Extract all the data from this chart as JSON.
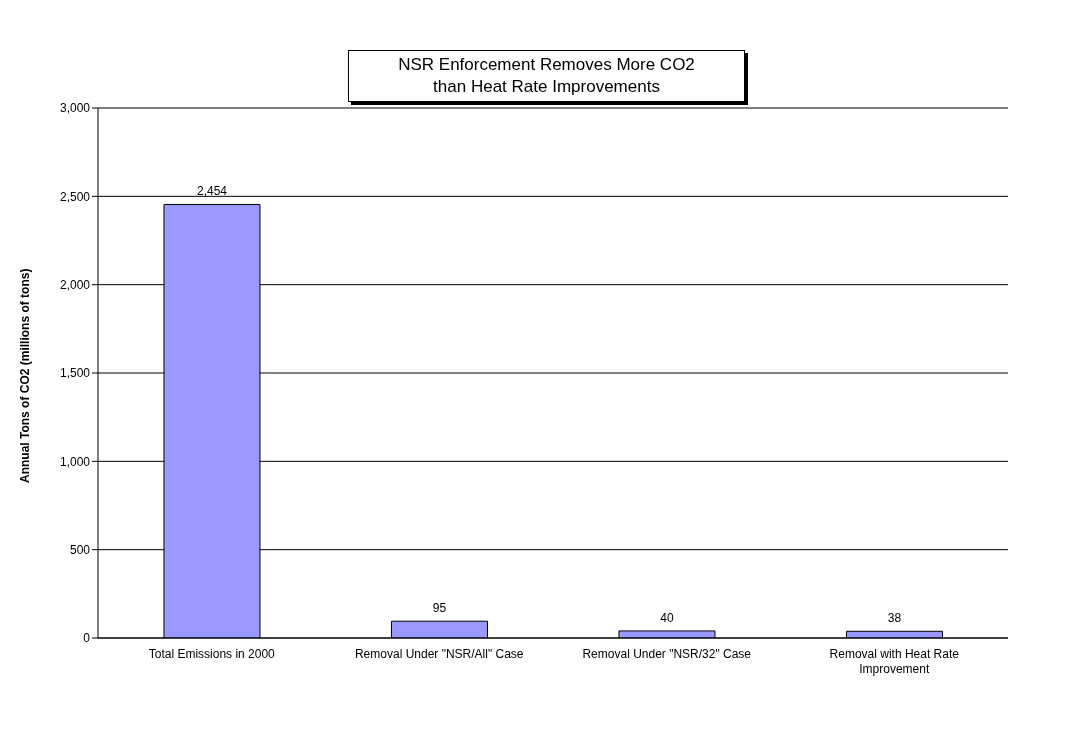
{
  "chart_data": {
    "type": "bar",
    "title": "NSR Enforcement Removes More CO2\nthan Heat Rate Improvements",
    "ylabel": "Annual Tons of CO2 (millions of tons)",
    "categories": [
      "Total Emissions in 2000",
      "Removal Under \"NSR/All\" Case",
      "Removal Under \"NSR/32\" Case",
      "Removal with Heat Rate Improvement"
    ],
    "values": [
      2454,
      95,
      40,
      38
    ],
    "color": "#9999ff",
    "ylim": [
      0,
      3000
    ],
    "yticks": [
      {
        "value": 0,
        "label": "0"
      },
      {
        "value": 500,
        "label": "500"
      },
      {
        "value": 1000,
        "label": "1,000"
      },
      {
        "value": 1500,
        "label": "1,500"
      },
      {
        "value": 2000,
        "label": "2,000"
      },
      {
        "value": 2500,
        "label": "2,500"
      },
      {
        "value": 3000,
        "label": "3,000"
      }
    ],
    "value_labels": [
      "2,454",
      "95",
      "40",
      "38"
    ],
    "grid": "y"
  }
}
